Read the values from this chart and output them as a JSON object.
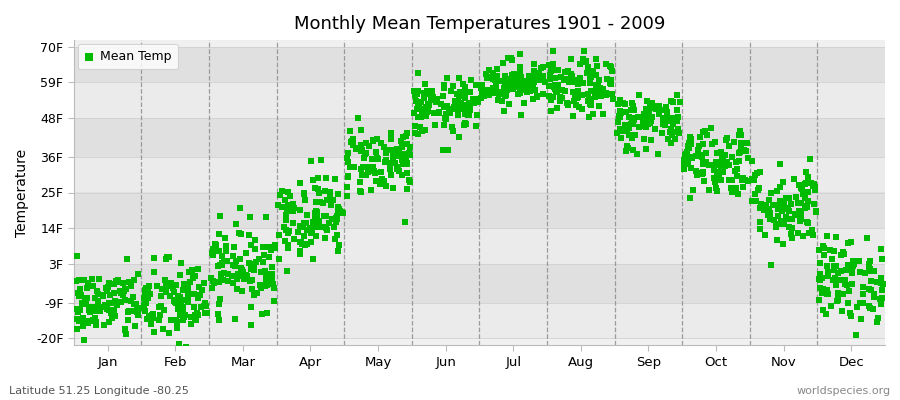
{
  "title": "Monthly Mean Temperatures 1901 - 2009",
  "ylabel": "Temperature",
  "xlabel_months": [
    "Jan",
    "Feb",
    "Mar",
    "Apr",
    "May",
    "Jun",
    "Jul",
    "Aug",
    "Sep",
    "Oct",
    "Nov",
    "Dec"
  ],
  "yticks": [
    -20,
    -9,
    3,
    14,
    25,
    36,
    48,
    59,
    70
  ],
  "ytick_labels": [
    "-20F",
    "-9F",
    "3F",
    "14F",
    "25F",
    "36F",
    "48F",
    "59F",
    "70F"
  ],
  "ylim": [
    -22,
    72
  ],
  "xlim": [
    0,
    12
  ],
  "marker_color": "#00bb00",
  "bg_color_light": "#f0f0f0",
  "bg_color_dark": "#e0e0e0",
  "fig_color": "#ffffff",
  "legend_label": "Mean Temp",
  "footer_left": "Latitude 51.25 Longitude -80.25",
  "footer_right": "worldspecies.org",
  "n_years": 109,
  "mean_temps_F": [
    -9.5,
    -9.0,
    2.0,
    18.0,
    35.0,
    51.0,
    59.0,
    57.0,
    47.0,
    35.0,
    21.0,
    -2.0
  ],
  "std_temps_F": [
    5.5,
    6.5,
    6.5,
    6.5,
    5.5,
    4.5,
    3.5,
    4.5,
    4.5,
    5.5,
    6.5,
    6.5
  ],
  "marker_size": 18,
  "dashed_color": "#888888",
  "band_colors": [
    "#ebebeb",
    "#e0e0e0"
  ],
  "band_boundaries": [
    -20,
    -9,
    3,
    14,
    25,
    36,
    48,
    59,
    70
  ]
}
